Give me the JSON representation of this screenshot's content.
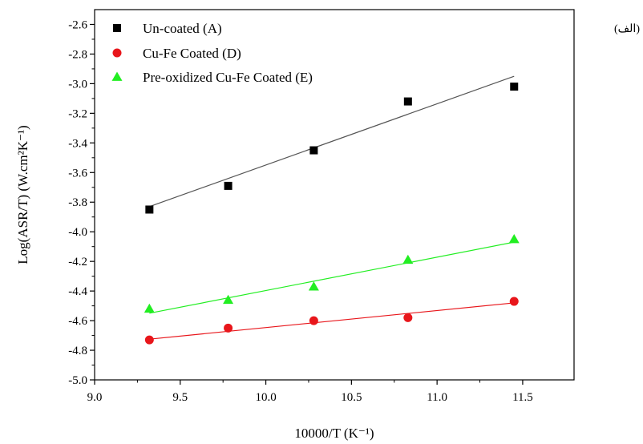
{
  "corner_label": "(الف)",
  "chart_data": {
    "type": "scatter",
    "title": "",
    "xlabel": "10000/T (K⁻¹)",
    "ylabel": "Log(ASR/T) (W.cm²K⁻¹)",
    "xlim": [
      9.0,
      11.8
    ],
    "ylim": [
      -5.0,
      -2.5
    ],
    "xticks": [
      9.0,
      9.5,
      10.0,
      10.5,
      11.0,
      11.5
    ],
    "xtick_labels": [
      "9.0",
      "9.5",
      "10.0",
      "10.5",
      "11.0",
      "11.5"
    ],
    "yticks": [
      -5.0,
      -4.8,
      -4.6,
      -4.4,
      -4.2,
      -4.0,
      -3.8,
      -3.6,
      -3.4,
      -3.2,
      -3.0,
      -2.8,
      -2.6
    ],
    "ytick_labels": [
      "-5.0",
      "-4.8",
      "-4.6",
      "-4.4",
      "-4.2",
      "-4.0",
      "-3.8",
      "-3.6",
      "-3.4",
      "-3.2",
      "-3.0",
      "-2.8",
      "-2.6"
    ],
    "grid": false,
    "legend_position": "top-left",
    "series": [
      {
        "name": "Un-coated",
        "tag": "(A)",
        "marker": "square",
        "color": "#000000",
        "line_color": "#555555",
        "x": [
          9.32,
          9.78,
          10.28,
          10.83,
          11.45
        ],
        "y": [
          -3.85,
          -3.69,
          -3.45,
          -3.12,
          -3.02
        ],
        "fit": {
          "x": [
            9.32,
            11.45
          ],
          "y": [
            -3.83,
            -2.95
          ]
        }
      },
      {
        "name": "Cu-Fe Coated",
        "tag": "(D)",
        "marker": "circle",
        "color": "#e8161b",
        "line_color": "#e8161b",
        "x": [
          9.32,
          9.78,
          10.28,
          10.83,
          11.45
        ],
        "y": [
          -4.73,
          -4.65,
          -4.6,
          -4.58,
          -4.47
        ],
        "fit": {
          "x": [
            9.32,
            11.45
          ],
          "y": [
            -4.725,
            -4.48
          ]
        }
      },
      {
        "name": "Pre-oxidized Cu-Fe Coated",
        "tag": "(E)",
        "marker": "triangle",
        "color": "#22ee22",
        "line_color": "#22ee22",
        "x": [
          9.32,
          9.78,
          10.28,
          10.83,
          11.45
        ],
        "y": [
          -4.52,
          -4.46,
          -4.37,
          -4.19,
          -4.05
        ],
        "fit": {
          "x": [
            9.32,
            11.45
          ],
          "y": [
            -4.55,
            -4.07
          ]
        }
      }
    ]
  }
}
